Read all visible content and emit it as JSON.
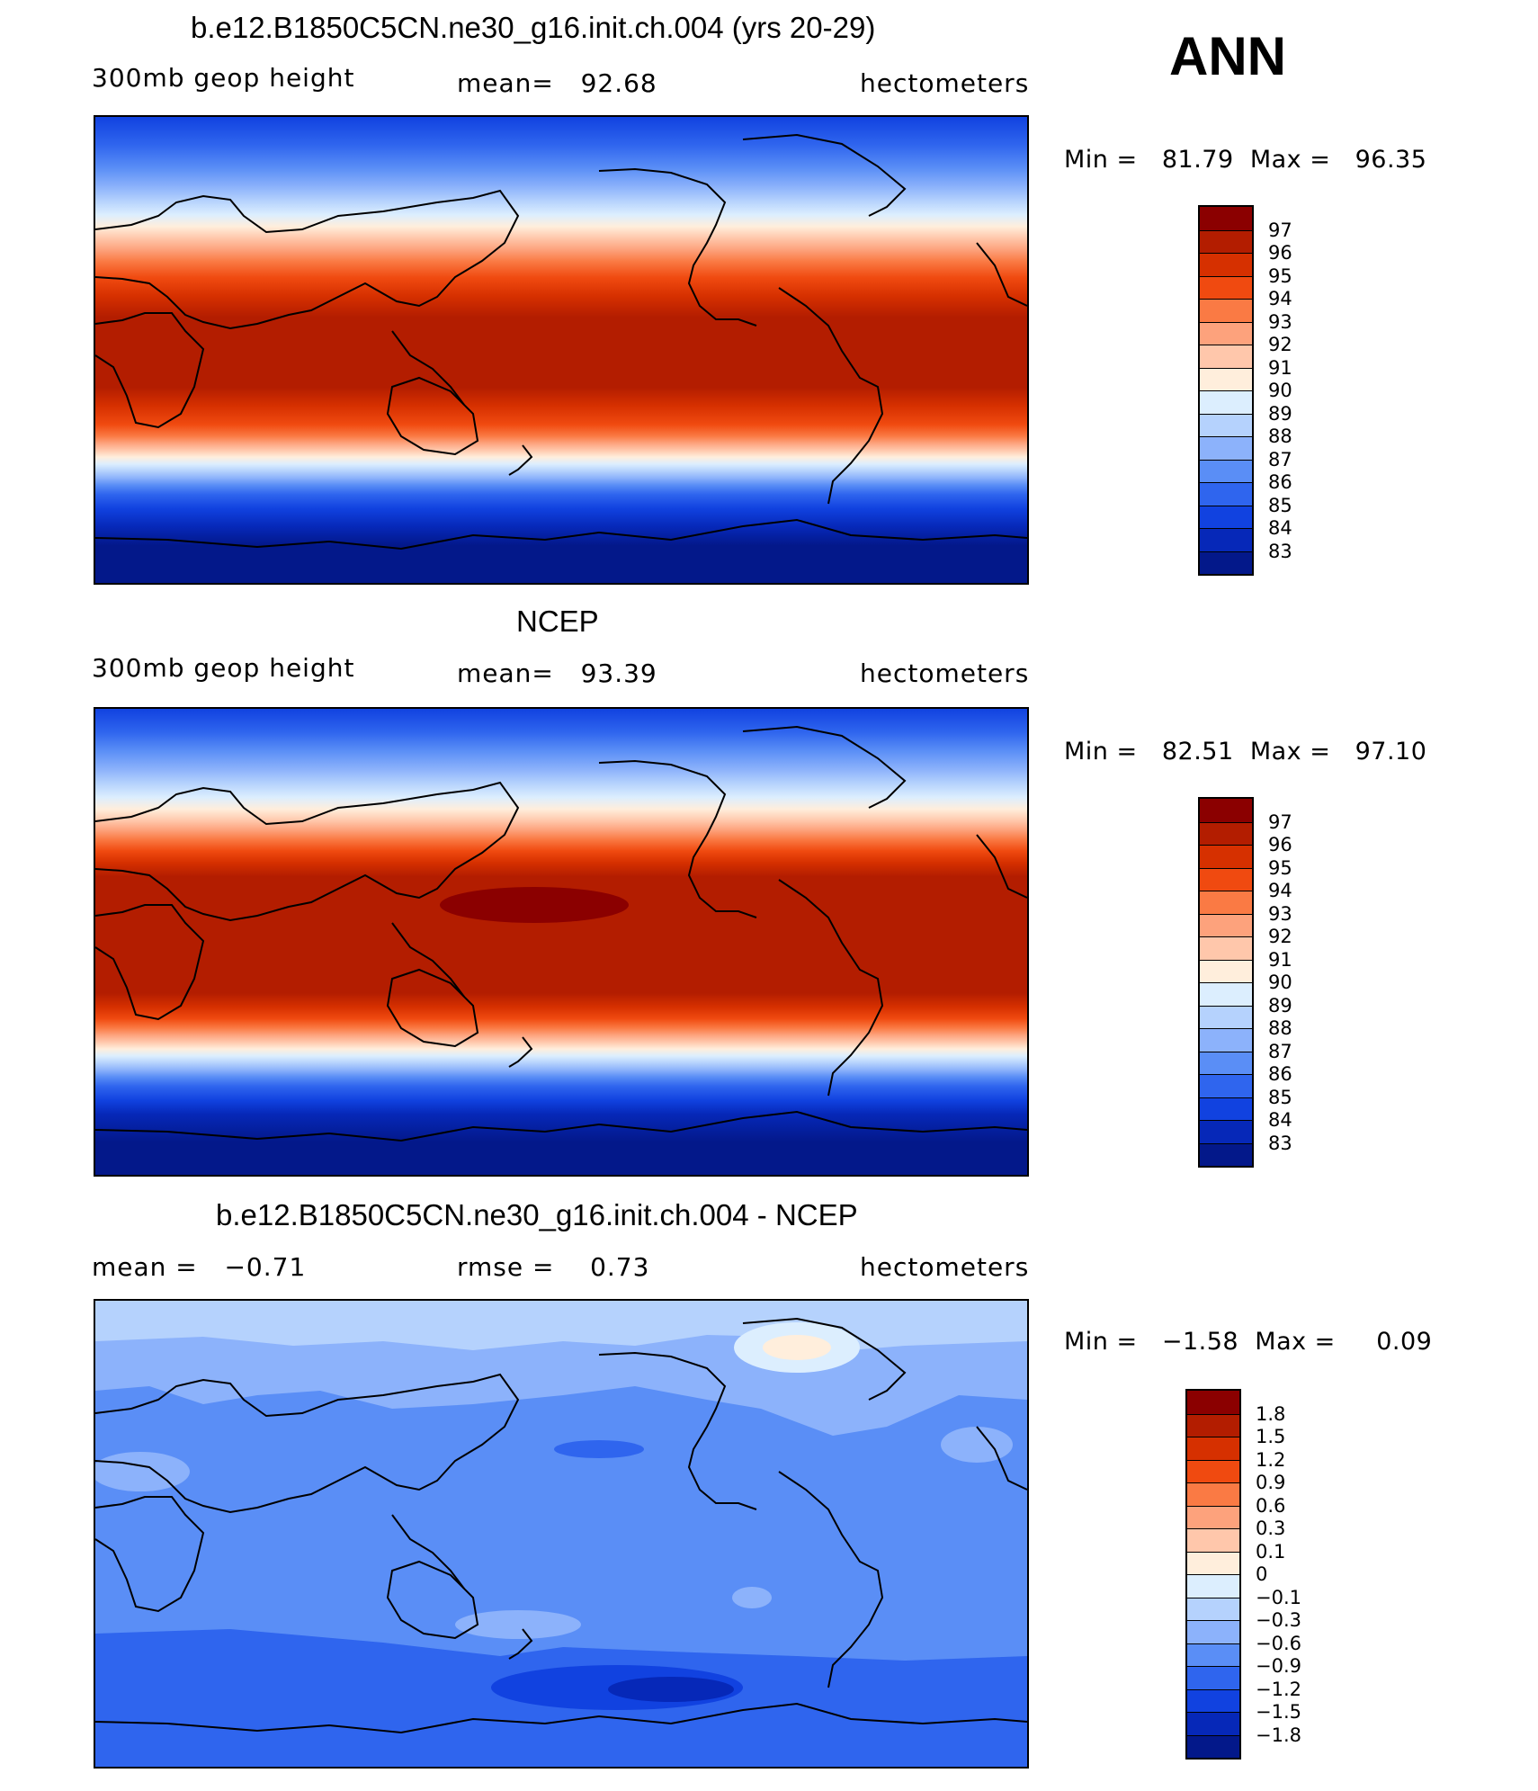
{
  "season": "ANN",
  "panels": [
    {
      "title": "b.e12.B1850C5CN.ne30_g16.init.ch.004 (yrs 20-29)",
      "variable": "300mb geop height",
      "stat": "mean=   92.68",
      "units": "hectometers",
      "minmax": "Min =   81.79  Max =   96.35"
    },
    {
      "title": "NCEP",
      "variable": "300mb geop height",
      "stat": "mean=   93.39",
      "units": "hectometers",
      "minmax": "Min =   82.51  Max =   97.10"
    },
    {
      "title": "b.e12.B1850C5CN.ne30_g16.init.ch.004 - NCEP",
      "variable": "mean =   −0.71",
      "stat": "rmse =    0.73",
      "units": "hectometers",
      "minmax": "Min =   −1.58  Max =     0.09"
    }
  ],
  "colorbars": {
    "absolute": {
      "labels": [
        "97",
        "96",
        "95",
        "94",
        "93",
        "92",
        "91",
        "90",
        "89",
        "88",
        "87",
        "86",
        "85",
        "84",
        "83"
      ],
      "colors": [
        "#8b0000",
        "#b31d00",
        "#d63000",
        "#f04a10",
        "#fa7a44",
        "#fda27c",
        "#ffc7ab",
        "#ffeedc",
        "#dceefe",
        "#b5d2fd",
        "#8cb2fb",
        "#5a8ef6",
        "#2f65ee",
        "#1142e0",
        "#0628b8",
        "#03188a"
      ]
    },
    "difference": {
      "labels": [
        "1.8",
        "1.5",
        "1.2",
        "0.9",
        "0.6",
        "0.3",
        "0.1",
        "0",
        "−0.1",
        "−0.3",
        "−0.6",
        "−0.9",
        "−1.2",
        "−1.5",
        "−1.8"
      ],
      "colors": [
        "#8b0000",
        "#b31d00",
        "#d63000",
        "#f04a10",
        "#fa7a44",
        "#fda27c",
        "#ffc7ab",
        "#ffeedc",
        "#dceefe",
        "#b5d2fd",
        "#8cb2fb",
        "#5a8ef6",
        "#2f65ee",
        "#1142e0",
        "#0628b8",
        "#03188a"
      ]
    }
  }
}
